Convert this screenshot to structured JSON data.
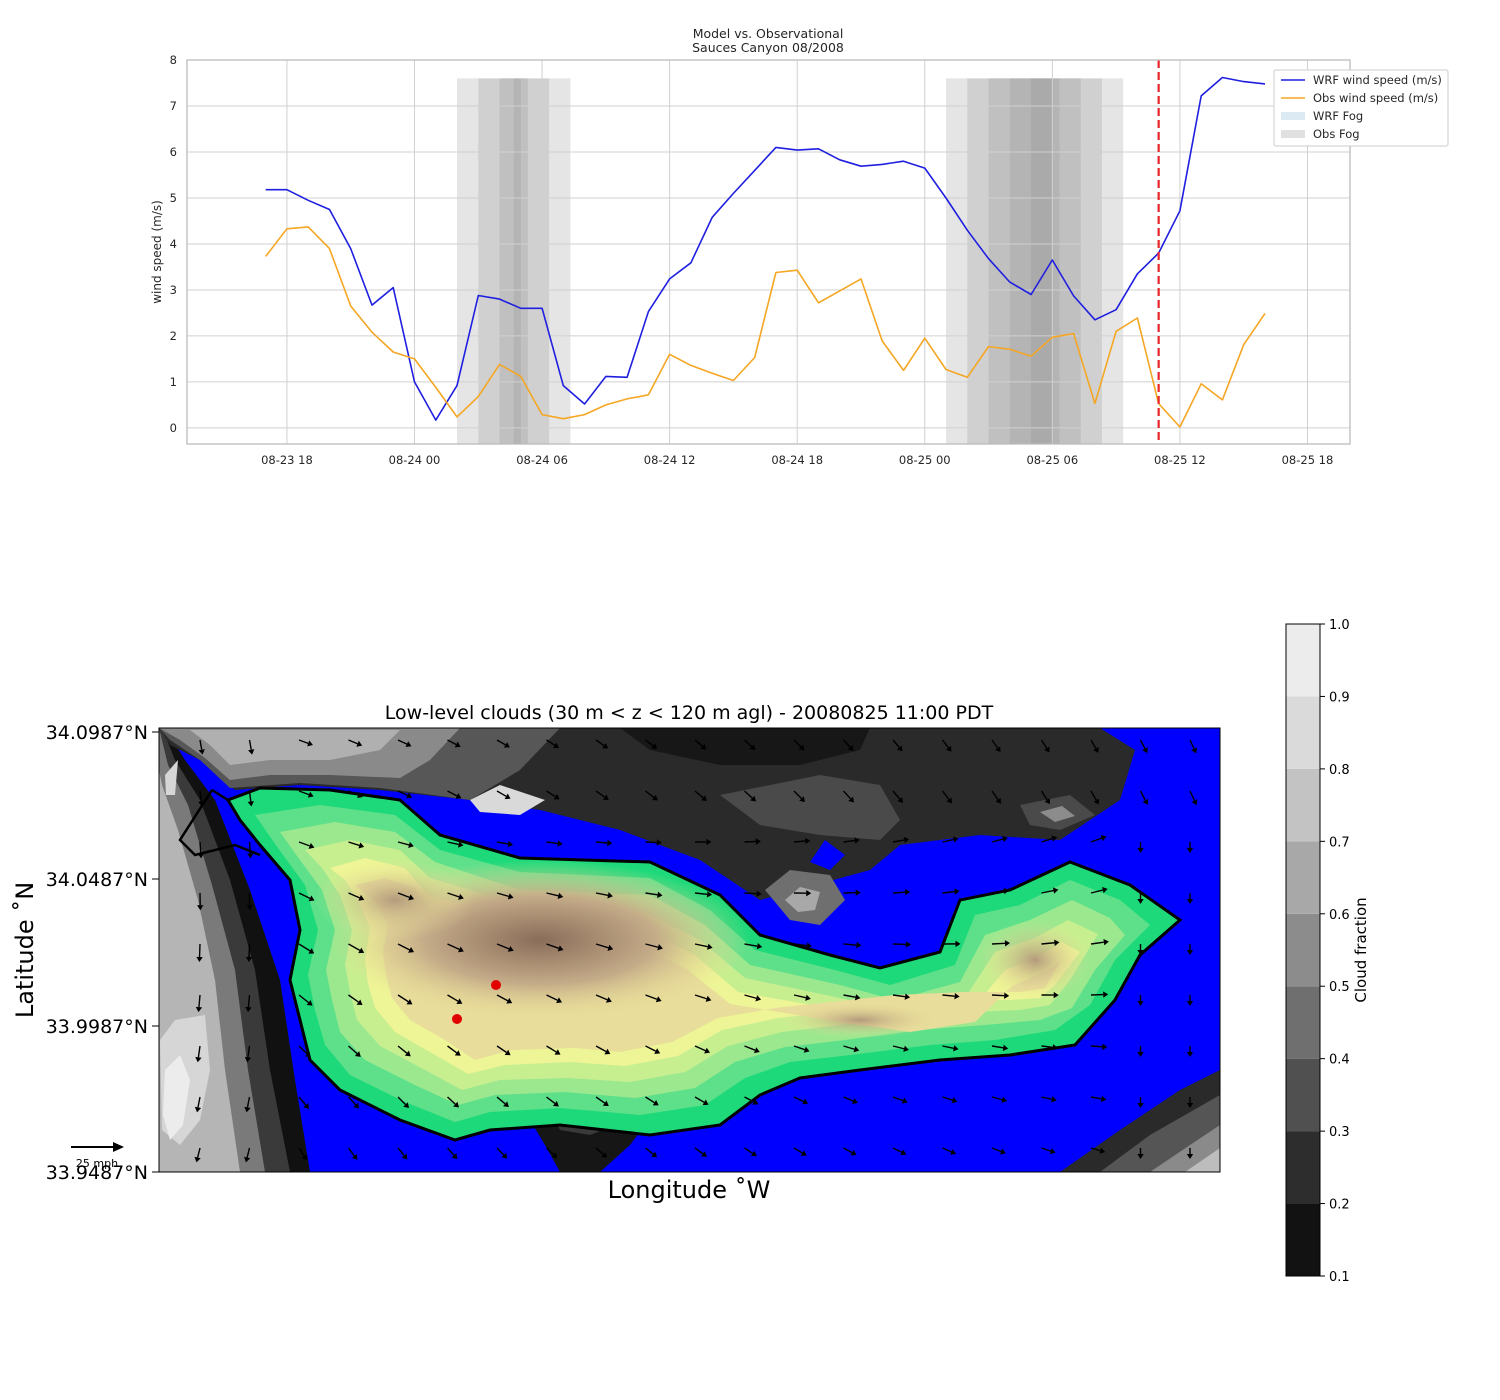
{
  "chart_data": [
    {
      "type": "line",
      "title": "Model vs. Observational",
      "subtitle": "Sauces Canyon 08/2008",
      "xlabel": "",
      "ylabel": "wind speed (m/s)",
      "ylim": [
        -0.35,
        8
      ],
      "yticks": [
        0,
        1,
        2,
        3,
        4,
        5,
        6,
        7,
        8
      ],
      "xlim": [
        "2008-08-23 13:18",
        "2008-08-25 20:00"
      ],
      "xticks": [
        {
          "t": "2008-08-23 18:00",
          "label": "08-23 18"
        },
        {
          "t": "2008-08-24 00:00",
          "label": "08-24 00"
        },
        {
          "t": "2008-08-24 06:00",
          "label": "08-24 06"
        },
        {
          "t": "2008-08-24 12:00",
          "label": "08-24 12"
        },
        {
          "t": "2008-08-24 18:00",
          "label": "08-24 18"
        },
        {
          "t": "2008-08-25 00:00",
          "label": "08-25 00"
        },
        {
          "t": "2008-08-25 06:00",
          "label": "08-25 06"
        },
        {
          "t": "2008-08-25 12:00",
          "label": "08-25 12"
        },
        {
          "t": "2008-08-25 18:00",
          "label": "08-25 18"
        }
      ],
      "grid": true,
      "legend_position": "top-right",
      "series": [
        {
          "name": "WRF wind speed (m/s)",
          "color": "#1f1fe0",
          "x": [
            "2008-08-23 17:00",
            "2008-08-23 18:00",
            "2008-08-23 19:00",
            "2008-08-23 20:00",
            "2008-08-23 21:00",
            "2008-08-23 22:00",
            "2008-08-23 23:00",
            "2008-08-24 00:00",
            "2008-08-24 01:00",
            "2008-08-24 02:00",
            "2008-08-24 03:00",
            "2008-08-24 04:00",
            "2008-08-24 05:00",
            "2008-08-24 06:00",
            "2008-08-24 07:00",
            "2008-08-24 08:00",
            "2008-08-24 09:00",
            "2008-08-24 10:00",
            "2008-08-24 11:00",
            "2008-08-24 12:00",
            "2008-08-24 13:00",
            "2008-08-24 14:00",
            "2008-08-24 15:00",
            "2008-08-24 16:00",
            "2008-08-24 17:00",
            "2008-08-24 18:00",
            "2008-08-24 19:00",
            "2008-08-24 20:00",
            "2008-08-24 21:00",
            "2008-08-24 22:00",
            "2008-08-24 23:00",
            "2008-08-25 00:00",
            "2008-08-25 01:00",
            "2008-08-25 02:00",
            "2008-08-25 03:00",
            "2008-08-25 04:00",
            "2008-08-25 05:00",
            "2008-08-25 06:00",
            "2008-08-25 07:00",
            "2008-08-25 08:00",
            "2008-08-25 09:00",
            "2008-08-25 10:00",
            "2008-08-25 11:00",
            "2008-08-25 12:00",
            "2008-08-25 13:00",
            "2008-08-25 14:00",
            "2008-08-25 15:00",
            "2008-08-25 16:00"
          ],
          "values": [
            5.18,
            5.18,
            4.95,
            4.75,
            3.9,
            2.67,
            3.05,
            1.0,
            0.17,
            0.92,
            2.88,
            2.8,
            2.6,
            2.6,
            0.92,
            0.52,
            1.12,
            1.1,
            2.53,
            3.24,
            3.59,
            4.58,
            5.1,
            5.6,
            6.1,
            6.04,
            6.07,
            5.83,
            5.69,
            5.73,
            5.8,
            5.65,
            5.0,
            4.3,
            3.68,
            3.17,
            2.9,
            3.65,
            2.87,
            2.35,
            2.57,
            3.35,
            3.8,
            4.72,
            7.22,
            7.62,
            7.53,
            7.48
          ]
        },
        {
          "name": "Obs wind speed (m/s)",
          "color": "#f5a623",
          "x": [
            "2008-08-23 17:00",
            "2008-08-23 18:00",
            "2008-08-23 19:00",
            "2008-08-23 20:00",
            "2008-08-23 21:00",
            "2008-08-23 22:00",
            "2008-08-23 23:00",
            "2008-08-24 00:00",
            "2008-08-24 01:00",
            "2008-08-24 02:00",
            "2008-08-24 03:00",
            "2008-08-24 04:00",
            "2008-08-24 05:00",
            "2008-08-24 06:00",
            "2008-08-24 07:00",
            "2008-08-24 08:00",
            "2008-08-24 09:00",
            "2008-08-24 10:00",
            "2008-08-24 11:00",
            "2008-08-24 12:00",
            "2008-08-24 13:00",
            "2008-08-24 14:00",
            "2008-08-24 15:00",
            "2008-08-24 16:00",
            "2008-08-24 17:00",
            "2008-08-24 18:00",
            "2008-08-24 19:00",
            "2008-08-24 20:00",
            "2008-08-24 21:00",
            "2008-08-24 22:00",
            "2008-08-24 23:00",
            "2008-08-25 00:00",
            "2008-08-25 01:00",
            "2008-08-25 02:00",
            "2008-08-25 03:00",
            "2008-08-25 04:00",
            "2008-08-25 05:00",
            "2008-08-25 06:00",
            "2008-08-25 07:00",
            "2008-08-25 08:00",
            "2008-08-25 09:00",
            "2008-08-25 10:00",
            "2008-08-25 11:00",
            "2008-08-25 12:00",
            "2008-08-25 13:00",
            "2008-08-25 14:00",
            "2008-08-25 15:00",
            "2008-08-25 16:00"
          ],
          "values": [
            3.73,
            4.33,
            4.37,
            3.9,
            2.65,
            2.08,
            1.65,
            1.5,
            0.88,
            0.24,
            0.68,
            1.38,
            1.12,
            0.29,
            0.2,
            0.29,
            0.5,
            0.63,
            0.72,
            1.6,
            1.36,
            1.19,
            1.03,
            1.53,
            3.38,
            3.43,
            2.72,
            2.98,
            3.24,
            1.89,
            1.25,
            1.95,
            1.27,
            1.1,
            1.77,
            1.71,
            1.56,
            1.97,
            2.05,
            0.53,
            2.1,
            2.39,
            0.53,
            0.02,
            0.96,
            0.61,
            1.81,
            2.49
          ]
        }
      ],
      "legend": [
        {
          "label": "WRF wind speed (m/s)",
          "kind": "line",
          "color": "#1f1fe0"
        },
        {
          "label": "Obs wind speed (m/s)",
          "kind": "line",
          "color": "#f5a623"
        },
        {
          "label": "WRF Fog",
          "kind": "patch",
          "color": "#dceaf3"
        },
        {
          "label": "Obs Fog",
          "kind": "patch",
          "color": "#e0e0e0"
        }
      ],
      "obs_fog_spans": [
        {
          "start": "2008-08-24 02:00",
          "end": "2008-08-24 07:20"
        },
        {
          "start": "2008-08-24 03:00",
          "end": "2008-08-24 06:20"
        },
        {
          "start": "2008-08-24 04:00",
          "end": "2008-08-24 05:20"
        },
        {
          "start": "2008-08-24 04:40",
          "end": "2008-08-24 05:00"
        },
        {
          "start": "2008-08-25 01:00",
          "end": "2008-08-25 09:20"
        },
        {
          "start": "2008-08-25 02:00",
          "end": "2008-08-25 08:20"
        },
        {
          "start": "2008-08-25 03:00",
          "end": "2008-08-25 07:20"
        },
        {
          "start": "2008-08-25 04:00",
          "end": "2008-08-25 06:20"
        },
        {
          "start": "2008-08-25 05:00",
          "end": "2008-08-25 06:00"
        }
      ],
      "vline": {
        "t": "2008-08-25 11:00",
        "color": "#e8262a",
        "style": "dashed"
      }
    },
    {
      "type": "heatmap",
      "title": "Low-level clouds (30 m < z < 120 m agl) - 20080825 11:00 PDT",
      "xlabel": "Longitude $^\\circ$W",
      "xlabel_display": "Longitude ˚W",
      "ylabel": "Latitude ˚N",
      "yticks": [
        "34.0987°N",
        "34.0487°N",
        "33.9987°N",
        "33.9487°N"
      ],
      "ylim": [
        33.9487,
        34.0987
      ],
      "colorbar": {
        "label": "Cloud fraction",
        "ticks": [
          "0.1",
          "0.2",
          "0.3",
          "0.4",
          "0.5",
          "0.6",
          "0.7",
          "0.8",
          "0.9",
          "1.0"
        ],
        "colors": [
          "#121212",
          "#2d2d2d",
          "#505050",
          "#6f6f6f",
          "#8c8c8c",
          "#a8a8a8",
          "#c3c3c3",
          "#dadada",
          "#ececec",
          "#f8f8f8"
        ]
      },
      "vector_key_label": "25 mph",
      "station_markers": 2,
      "colors": {
        "ocean": "#0000ff",
        "cloud_edge": "#00d878",
        "cloud_mid": "#f5f590",
        "cloud_core": "#8a6d5a",
        "marker": "#e00000"
      }
    }
  ]
}
